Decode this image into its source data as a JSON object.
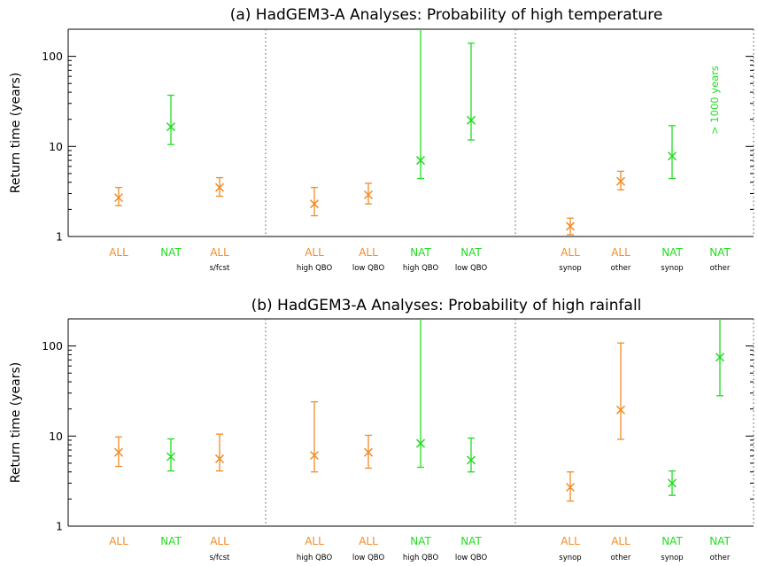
{
  "colors": {
    "ALL": "#f28c28",
    "NAT": "#22dd22",
    "axis": "#000000",
    "divider": "#555555"
  },
  "chart_data": [
    {
      "type": "errorbar",
      "title": "(a) HadGEM3-A Analyses: Probability of high temperature",
      "ylabel": "Return time (years)",
      "yscale": "log",
      "ylim": [
        1,
        200
      ],
      "yticks": [
        "1",
        "10",
        "100"
      ],
      "annotation": "> 1000 years",
      "annotation_series": "NAT",
      "points": [
        {
          "label": "ALL",
          "sub": "",
          "series": "ALL",
          "y": 2.7,
          "lo": 2.2,
          "hi": 3.5
        },
        {
          "label": "NAT",
          "sub": "",
          "series": "NAT",
          "y": 16.5,
          "lo": 10.5,
          "hi": 37
        },
        {
          "label": "ALL",
          "sub": "s/fcst",
          "series": "ALL",
          "y": 3.5,
          "lo": 2.8,
          "hi": 4.5
        },
        {
          "label": "ALL",
          "sub": "high QBO",
          "series": "ALL",
          "y": 2.3,
          "lo": 1.7,
          "hi": 3.5
        },
        {
          "label": "ALL",
          "sub": "low QBO",
          "series": "ALL",
          "y": 2.9,
          "lo": 2.3,
          "hi": 3.9
        },
        {
          "label": "NAT",
          "sub": "high QBO",
          "series": "NAT",
          "y": 7.0,
          "lo": 4.4,
          "hi": 200
        },
        {
          "label": "NAT",
          "sub": "low QBO",
          "series": "NAT",
          "y": 19.5,
          "lo": 11.8,
          "hi": 140
        },
        {
          "label": "ALL",
          "sub": "synop",
          "series": "ALL",
          "y": 1.3,
          "lo": 1.05,
          "hi": 1.6
        },
        {
          "label": "ALL",
          "sub": "other",
          "series": "ALL",
          "y": 4.1,
          "lo": 3.3,
          "hi": 5.3
        },
        {
          "label": "NAT",
          "sub": "synop",
          "series": "NAT",
          "y": 7.8,
          "lo": 4.4,
          "hi": 17
        },
        {
          "label": "NAT",
          "sub": "other",
          "series": "NAT",
          "y": null,
          "lo": null,
          "hi": null
        }
      ]
    },
    {
      "type": "errorbar",
      "title": "(b) HadGEM3-A Analyses: Probability of high rainfall",
      "ylabel": "Return time (years)",
      "yscale": "log",
      "ylim": [
        1,
        200
      ],
      "yticks": [
        "1",
        "10",
        "100"
      ],
      "annotation": "",
      "annotation_series": "",
      "points": [
        {
          "label": "ALL",
          "sub": "",
          "series": "ALL",
          "y": 6.6,
          "lo": 4.6,
          "hi": 9.8
        },
        {
          "label": "NAT",
          "sub": "",
          "series": "NAT",
          "y": 5.9,
          "lo": 4.1,
          "hi": 9.3
        },
        {
          "label": "ALL",
          "sub": "s/fcst",
          "series": "ALL",
          "y": 5.6,
          "lo": 4.1,
          "hi": 10.5
        },
        {
          "label": "ALL",
          "sub": "high QBO",
          "series": "ALL",
          "y": 6.1,
          "lo": 4.0,
          "hi": 24
        },
        {
          "label": "ALL",
          "sub": "low QBO",
          "series": "ALL",
          "y": 6.6,
          "lo": 4.4,
          "hi": 10.2
        },
        {
          "label": "NAT",
          "sub": "high QBO",
          "series": "NAT",
          "y": 8.3,
          "lo": 4.5,
          "hi": 200
        },
        {
          "label": "NAT",
          "sub": "low QBO",
          "series": "NAT",
          "y": 5.4,
          "lo": 4.0,
          "hi": 9.5
        },
        {
          "label": "ALL",
          "sub": "synop",
          "series": "ALL",
          "y": 2.7,
          "lo": 1.9,
          "hi": 4.0
        },
        {
          "label": "ALL",
          "sub": "other",
          "series": "ALL",
          "y": 19.5,
          "lo": 9.2,
          "hi": 108
        },
        {
          "label": "NAT",
          "sub": "synop",
          "series": "NAT",
          "y": 3.0,
          "lo": 2.2,
          "hi": 4.1
        },
        {
          "label": "NAT",
          "sub": "other",
          "series": "NAT",
          "y": 75,
          "lo": 28,
          "hi": 200
        }
      ]
    }
  ]
}
